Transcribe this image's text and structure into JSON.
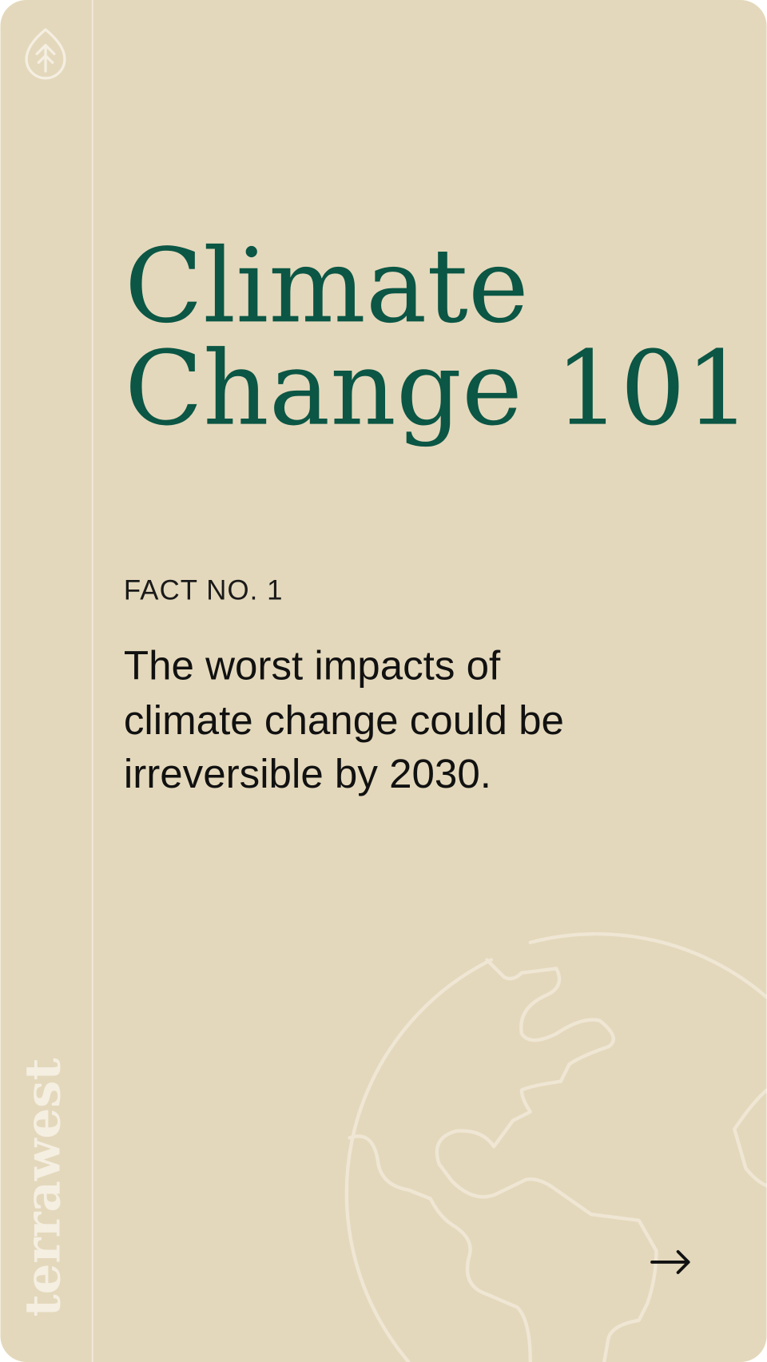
{
  "brand": "terrawest",
  "title": {
    "lines": [
      "Climate",
      "Change 101"
    ]
  },
  "fact": {
    "label": "FACT NO. 1",
    "lines": [
      "The worst impacts of",
      "climate change could be",
      "irreversible by 2030."
    ]
  }
}
